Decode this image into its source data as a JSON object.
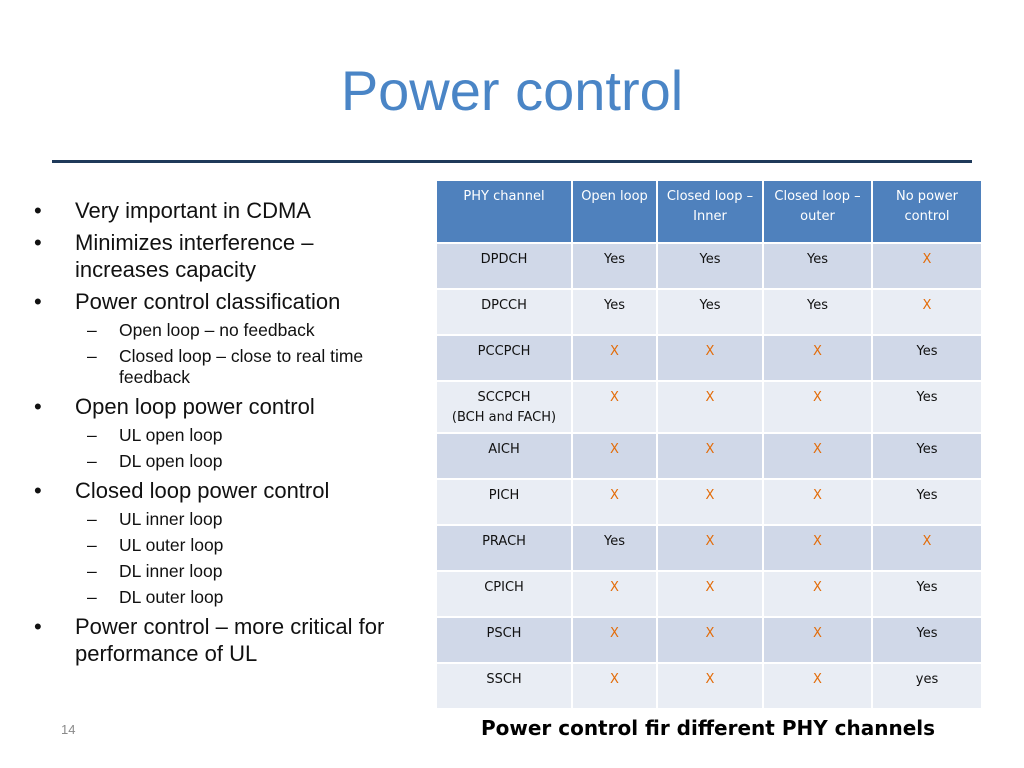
{
  "slide": {
    "title": "Power control",
    "number": "14",
    "caption": "Power control fir different PHY channels"
  },
  "bullets": [
    {
      "text": "Very important in CDMA",
      "subs": []
    },
    {
      "text": "Minimizes interference – increases capacity",
      "subs": []
    },
    {
      "text": "Power control classification",
      "subs": [
        "Open loop – no feedback",
        "Closed loop – close to real time feedback"
      ]
    },
    {
      "text": "Open loop power control",
      "subs": [
        "UL open loop",
        "DL open loop"
      ]
    },
    {
      "text": "Closed loop power control",
      "subs": [
        "UL inner loop",
        "UL outer loop",
        "DL inner loop",
        "DL outer loop"
      ]
    },
    {
      "text": "Power control – more critical for performance of UL",
      "subs": []
    }
  ],
  "table": {
    "headers": [
      "PHY channel",
      "Open loop",
      "Closed loop – Inner",
      "Closed loop – outer",
      "No power control"
    ],
    "rows": [
      {
        "channel": "DPDCH",
        "sub": "",
        "values": [
          "Yes",
          "Yes",
          "Yes",
          "X"
        ]
      },
      {
        "channel": "DPCCH",
        "sub": "",
        "values": [
          "Yes",
          "Yes",
          "Yes",
          "X"
        ]
      },
      {
        "channel": "PCCPCH",
        "sub": "",
        "values": [
          "X",
          "X",
          "X",
          "Yes"
        ]
      },
      {
        "channel": "SCCPCH",
        "sub": "(BCH and FACH)",
        "values": [
          "X",
          "X",
          "X",
          "Yes"
        ]
      },
      {
        "channel": "AICH",
        "sub": "",
        "values": [
          "X",
          "X",
          "X",
          "Yes"
        ]
      },
      {
        "channel": "PICH",
        "sub": "",
        "values": [
          "X",
          "X",
          "X",
          "Yes"
        ]
      },
      {
        "channel": "PRACH",
        "sub": "",
        "values": [
          "Yes",
          "X",
          "X",
          "X"
        ]
      },
      {
        "channel": "CPICH",
        "sub": "",
        "values": [
          "X",
          "X",
          "X",
          "Yes"
        ]
      },
      {
        "channel": "PSCH",
        "sub": "",
        "values": [
          "X",
          "X",
          "X",
          "Yes"
        ]
      },
      {
        "channel": "SSCH",
        "sub": "",
        "values": [
          "X",
          "X",
          "X",
          "yes"
        ]
      }
    ]
  },
  "colors": {
    "title": "#4a85c6",
    "header_fill": "#4f81bd",
    "row_odd": "#d0d8e8",
    "row_even": "#e9edf4",
    "x_mark": "#e36c09"
  }
}
